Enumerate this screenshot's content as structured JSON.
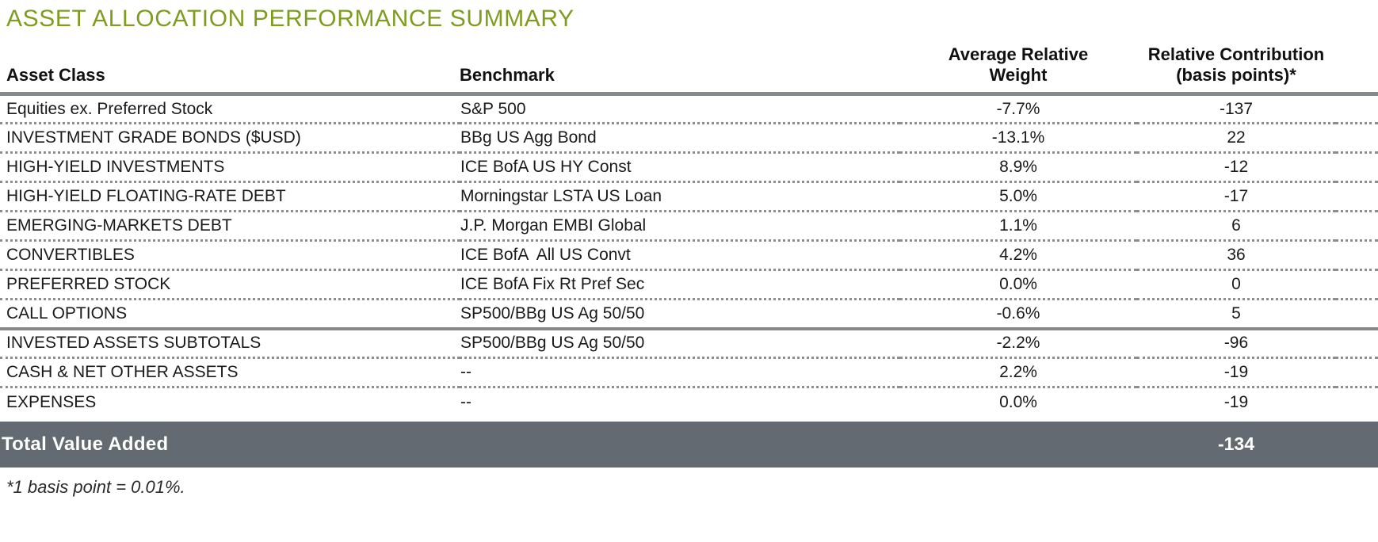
{
  "title": "ASSET ALLOCATION PERFORMANCE SUMMARY",
  "table": {
    "headers": {
      "asset_class": "Asset Class",
      "benchmark": "Benchmark",
      "avg_relative_weight_line1": "Average Relative",
      "avg_relative_weight_line2": "Weight",
      "relative_contribution_line1": "Relative Contribution",
      "relative_contribution_line2": "(basis points)*"
    },
    "rows": [
      {
        "asset_class": "Equities ex. Preferred Stock",
        "benchmark": "S&P 500",
        "avg_relative_weight": "-7.7%",
        "relative_contribution": "-137"
      },
      {
        "asset_class": "INVESTMENT GRADE BONDS ($USD)",
        "benchmark": "BBg US Agg Bond",
        "avg_relative_weight": "-13.1%",
        "relative_contribution": "22"
      },
      {
        "asset_class": "HIGH-YIELD INVESTMENTS",
        "benchmark": "ICE BofA US HY Const",
        "avg_relative_weight": "8.9%",
        "relative_contribution": "-12"
      },
      {
        "asset_class": "HIGH-YIELD FLOATING-RATE DEBT",
        "benchmark": "Morningstar LSTA US Loan",
        "avg_relative_weight": "5.0%",
        "relative_contribution": "-17"
      },
      {
        "asset_class": "EMERGING-MARKETS DEBT",
        "benchmark": "J.P. Morgan EMBI Global",
        "avg_relative_weight": "1.1%",
        "relative_contribution": "6"
      },
      {
        "asset_class": "CONVERTIBLES",
        "benchmark": "ICE BofA  All US Convt",
        "avg_relative_weight": "4.2%",
        "relative_contribution": "36"
      },
      {
        "asset_class": "PREFERRED STOCK",
        "benchmark": "ICE BofA Fix Rt Pref Sec",
        "avg_relative_weight": "0.0%",
        "relative_contribution": "0"
      },
      {
        "asset_class": "CALL OPTIONS",
        "benchmark": "SP500/BBg US Ag 50/50",
        "avg_relative_weight": "-0.6%",
        "relative_contribution": "5",
        "section_break_after": true
      },
      {
        "asset_class": "INVESTED ASSETS SUBTOTALS",
        "benchmark": "SP500/BBg US Ag 50/50",
        "avg_relative_weight": "-2.2%",
        "relative_contribution": "-96"
      },
      {
        "asset_class": "CASH & NET OTHER ASSETS",
        "benchmark": "--",
        "avg_relative_weight": "2.2%",
        "relative_contribution": "-19"
      },
      {
        "asset_class": "EXPENSES",
        "benchmark": "--",
        "avg_relative_weight": "0.0%",
        "relative_contribution": "-19"
      }
    ],
    "total_row": {
      "label": "Total Value Added",
      "relative_contribution": "-134"
    }
  },
  "footnote": "*1 basis point = 0.01%.",
  "colors": {
    "title_green": "#7e9d20",
    "rule_gray": "#85898c",
    "dot_gray": "#8d8d8d",
    "total_bar": "#636a71",
    "total_text": "#ffffff",
    "text_dark": "#1a1a1a"
  }
}
